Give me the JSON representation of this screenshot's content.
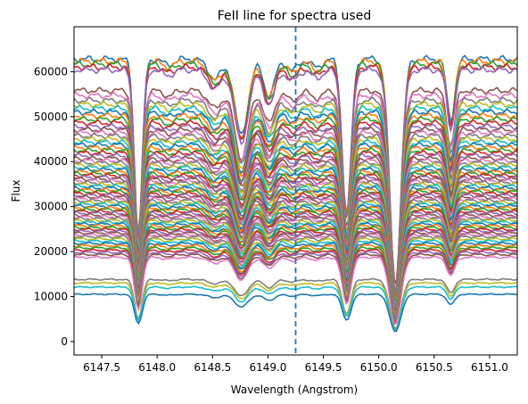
{
  "chart_data": {
    "type": "line",
    "title": "FeII line for spectra used",
    "xlabel": "Wavelength (Angstrom)",
    "ylabel": "Flux",
    "xlim": [
      6147.25,
      6151.25
    ],
    "ylim": [
      -3000,
      70000
    ],
    "x_ticks": [
      6147.5,
      6148.0,
      6148.5,
      6149.0,
      6149.5,
      6150.0,
      6150.5,
      6151.0
    ],
    "x_tick_labels": [
      "6147.5",
      "6148.0",
      "6148.5",
      "6149.0",
      "6149.5",
      "6150.0",
      "6150.5",
      "6151.0"
    ],
    "y_ticks": [
      0,
      10000,
      20000,
      30000,
      40000,
      50000,
      60000
    ],
    "y_tick_labels": [
      "0",
      "10000",
      "20000",
      "30000",
      "40000",
      "50000",
      "60000"
    ],
    "reference_line": {
      "x": 6149.25,
      "style": "dashed",
      "color": "#1f77b4"
    },
    "grid": false,
    "palette": [
      "#1f77b4",
      "#ff7f0e",
      "#2ca02c",
      "#d62728",
      "#9467bd",
      "#8c564b",
      "#e377c2",
      "#7f7f7f",
      "#bcbd22",
      "#17becf"
    ],
    "absorption_lines": [
      {
        "center": 6147.83,
        "depth": 0.62,
        "width": 0.035
      },
      {
        "center": 6148.1,
        "depth": 0.02,
        "width": 0.05
      },
      {
        "center": 6148.52,
        "depth": 0.07,
        "width": 0.06
      },
      {
        "center": 6148.76,
        "depth": 0.27,
        "width": 0.06
      },
      {
        "center": 6149.01,
        "depth": 0.13,
        "width": 0.05
      },
      {
        "center": 6149.22,
        "depth": 0.04,
        "width": 0.05
      },
      {
        "center": 6149.44,
        "depth": 0.03,
        "width": 0.05
      },
      {
        "center": 6149.71,
        "depth": 0.55,
        "width": 0.04
      },
      {
        "center": 6150.15,
        "depth": 0.8,
        "width": 0.05
      },
      {
        "center": 6150.65,
        "depth": 0.22,
        "width": 0.035
      }
    ],
    "series_continua": [
      62800,
      62300,
      61600,
      61000,
      60400,
      55800,
      54700,
      53600,
      52700,
      51800,
      51000,
      50200,
      49400,
      48600,
      47800,
      47100,
      46400,
      45700,
      45000,
      44300,
      43700,
      43100,
      42500,
      41900,
      41300,
      40700,
      40200,
      39700,
      39200,
      38700,
      38200,
      37700,
      37300,
      36900,
      36500,
      36100,
      35700,
      35300,
      34900,
      34500,
      34100,
      33700,
      33300,
      32900,
      32500,
      32100,
      31700,
      31300,
      30900,
      30500,
      30100,
      29700,
      29300,
      28900,
      28500,
      28100,
      27700,
      27300,
      26900,
      26500,
      26100,
      25700,
      25300,
      24900,
      24500,
      24100,
      23700,
      23300,
      22800,
      22300,
      21800,
      21300,
      20800,
      20300,
      19800,
      19300,
      18700,
      13800,
      13000,
      12100,
      10500
    ]
  }
}
